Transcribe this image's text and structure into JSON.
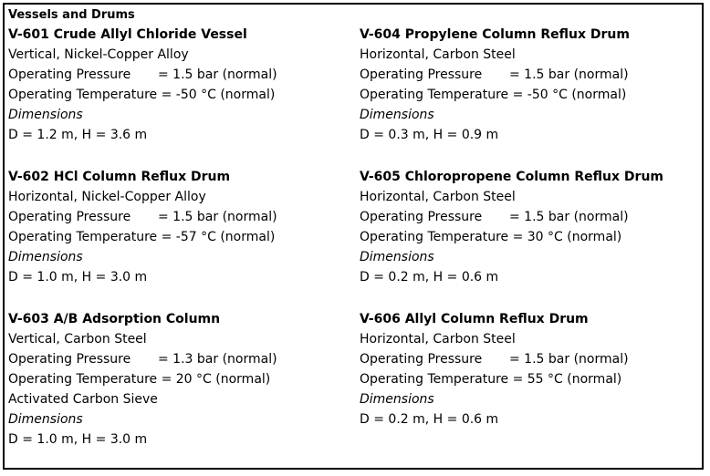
{
  "heading": "Vessels and Drums",
  "left_column": [
    {
      "title": "V-601 Crude Allyl Chloride Vessel",
      "orientation_material": "Vertical, Nickel-Copper Alloy",
      "pressure_label": "Operating Pressure",
      "pressure_value": "= 1.5 bar (normal)",
      "temperature_label": "Operating Temperature",
      "temperature_value": "= -50 °C (normal)",
      "extra": "",
      "dimensions_label": "Dimensions",
      "dimensions_value": "D = 1.2 m, H = 3.6 m"
    },
    {
      "title": "V-602 HCl Column Reflux Drum",
      "orientation_material": "Horizontal, Nickel-Copper Alloy",
      "pressure_label": "Operating Pressure",
      "pressure_value": "= 1.5 bar (normal)",
      "temperature_label": "Operating Temperature",
      "temperature_value": "= -57 °C (normal)",
      "extra": "",
      "dimensions_label": "Dimensions",
      "dimensions_value": "D = 1.0 m, H = 3.0 m"
    },
    {
      "title": "V-603 A/B Adsorption Column",
      "orientation_material": "Vertical, Carbon Steel",
      "pressure_label": "Operating Pressure",
      "pressure_value": "= 1.3 bar (normal)",
      "temperature_label": "Operating Temperature",
      "temperature_value": "= 20 °C (normal)",
      "extra": "Activated Carbon Sieve",
      "dimensions_label": "Dimensions",
      "dimensions_value": "D = 1.0 m, H = 3.0 m"
    }
  ],
  "right_column": [
    {
      "title": "V-604 Propylene Column Reflux Drum",
      "orientation_material": "Horizontal, Carbon Steel",
      "pressure_label": "Operating Pressure",
      "pressure_value": "= 1.5 bar (normal)",
      "temperature_label": "Operating Temperature",
      "temperature_value": "= -50 °C (normal)",
      "dimensions_label": "Dimensions",
      "dimensions_value": "D = 0.3 m, H = 0.9 m"
    },
    {
      "title": "V-605 Chloropropene Column Reflux Drum",
      "orientation_material": "Horizontal, Carbon Steel",
      "pressure_label": "Operating Pressure",
      "pressure_value": "= 1.5 bar (normal)",
      "temperature_label": "Operating Temperature",
      "temperature_value": "= 30 °C (normal)",
      "dimensions_label": "Dimensions",
      "dimensions_value": "D = 0.2 m, H = 0.6 m"
    },
    {
      "title": "V-606 Allyl Column Reflux Drum",
      "orientation_material": "Horizontal, Carbon Steel",
      "pressure_label": "Operating Pressure",
      "pressure_value": "= 1.5 bar (normal)",
      "temperature_label": "Operating Temperature",
      "temperature_value": "= 55 °C (normal)",
      "dimensions_label": "Dimensions",
      "dimensions_value": "D = 0.2 m, H = 0.6 m"
    }
  ]
}
